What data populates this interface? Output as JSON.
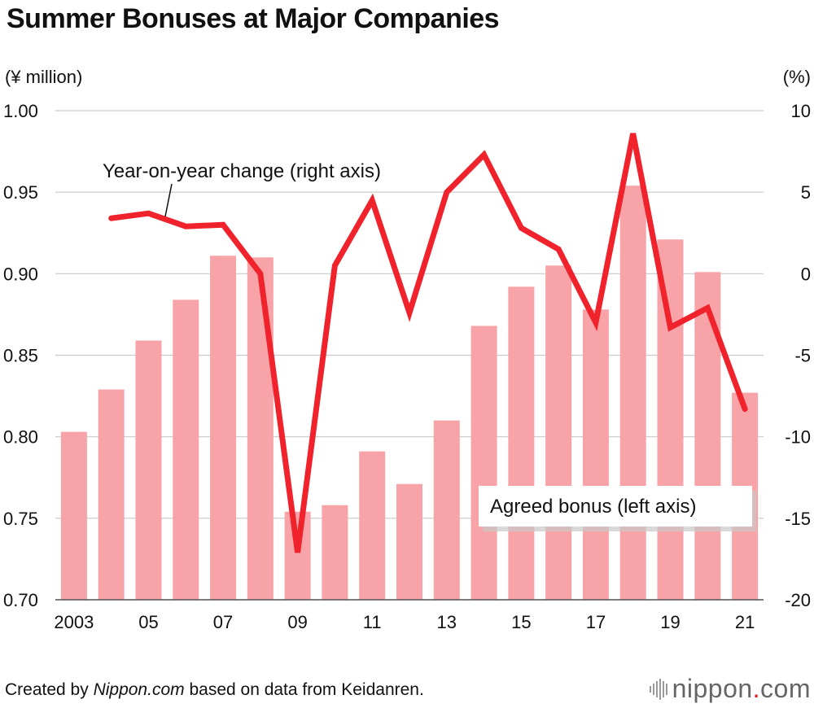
{
  "header": {
    "title": "Summer Bonuses at Major Companies",
    "left_unit": "(¥ million)",
    "right_unit": "(%)"
  },
  "chart_data": {
    "type": "bar+line",
    "title": "Summer Bonuses at Major Companies",
    "x_tick_labels": [
      "2003",
      "05",
      "07",
      "09",
      "11",
      "13",
      "15",
      "17",
      "19",
      "21"
    ],
    "categories": [
      "2003",
      "2004",
      "2005",
      "2006",
      "2007",
      "2008",
      "2009",
      "2010",
      "2011",
      "2012",
      "2013",
      "2014",
      "2015",
      "2016",
      "2017",
      "2018",
      "2019",
      "2020",
      "2021"
    ],
    "left_axis": {
      "label": "(¥ million)",
      "ylim": [
        0.7,
        1.0
      ],
      "ticks": [
        1.0,
        0.95,
        0.9,
        0.85,
        0.8,
        0.75,
        0.7
      ],
      "tick_labels": [
        "1.00",
        "0.95",
        "0.90",
        "0.85",
        "0.80",
        "0.75",
        "0.70"
      ]
    },
    "right_axis": {
      "label": "(%)",
      "ylim": [
        -20,
        10
      ],
      "ticks": [
        10,
        5,
        0,
        -5,
        -10,
        -15,
        -20
      ],
      "tick_labels": [
        "10",
        "5",
        "0",
        "-5",
        "-10",
        "-15",
        "-20"
      ]
    },
    "series": [
      {
        "name": "Agreed bonus (left axis)",
        "type": "bar",
        "axis": "left",
        "color": "#f7a3a8",
        "values": [
          0.803,
          0.829,
          0.859,
          0.884,
          0.911,
          0.91,
          0.754,
          0.758,
          0.791,
          0.771,
          0.81,
          0.868,
          0.892,
          0.905,
          0.878,
          0.954,
          0.921,
          0.901,
          0.827
        ]
      },
      {
        "name": "Year-on-year change (right axis)",
        "type": "line",
        "axis": "right",
        "color": "#f0222c",
        "values": [
          null,
          3.4,
          3.7,
          2.9,
          3.0,
          0.0,
          -17.1,
          0.5,
          4.5,
          -2.4,
          5.0,
          7.3,
          2.8,
          1.5,
          -3.0,
          8.6,
          -3.3,
          -2.1,
          -8.3
        ]
      }
    ],
    "annotations": {
      "line_label": "Year-on-year change (right axis)",
      "bar_label": "Agreed bonus (left axis)"
    },
    "grid": true
  },
  "footer": {
    "credit_prefix": "Created by ",
    "credit_source": "Nippon.com",
    "credit_suffix": " based on data from Keidanren.",
    "logo_name": "nippon",
    "logo_dot": ".",
    "logo_tld": "com"
  }
}
